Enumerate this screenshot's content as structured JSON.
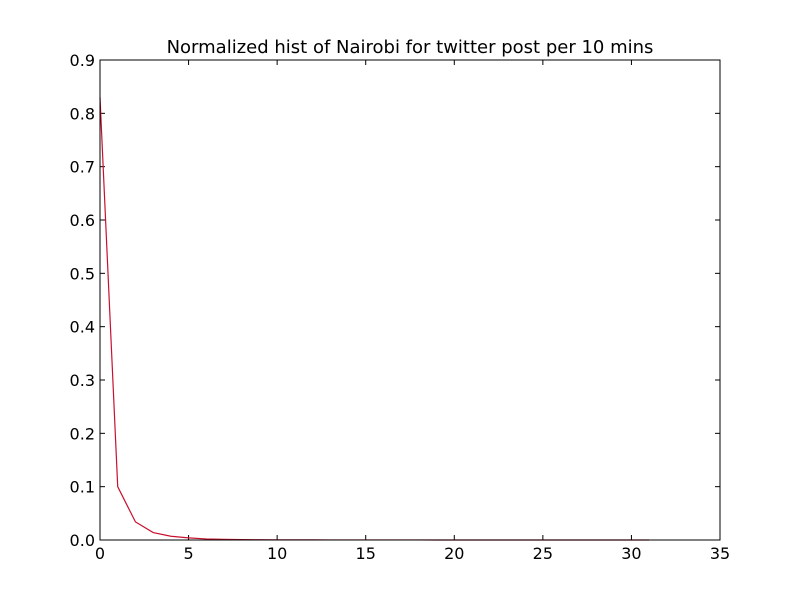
{
  "chart_data": {
    "type": "line",
    "title": "Normalized hist of Nairobi for twitter post per 10 mins",
    "xlabel": "",
    "ylabel": "",
    "xlim": [
      0,
      35
    ],
    "ylim": [
      0,
      0.9
    ],
    "xticks": [
      0,
      5,
      10,
      15,
      20,
      25,
      30,
      35
    ],
    "xtick_labels": [
      "0",
      "5",
      "10",
      "15",
      "20",
      "25",
      "30",
      "35"
    ],
    "yticks": [
      0.0,
      0.1,
      0.2,
      0.3,
      0.4,
      0.5,
      0.6,
      0.7,
      0.8,
      0.9
    ],
    "ytick_labels": [
      "0.0",
      "0.1",
      "0.2",
      "0.3",
      "0.4",
      "0.5",
      "0.6",
      "0.7",
      "0.8",
      "0.9"
    ],
    "grid": false,
    "series": [
      {
        "color": "#c8102e",
        "x": [
          0,
          1,
          2,
          3,
          4,
          5,
          6,
          7,
          8,
          9,
          10,
          11,
          12,
          13,
          14,
          15,
          16,
          17,
          18,
          19,
          20,
          21,
          22,
          23,
          24,
          25,
          26,
          27,
          28,
          29,
          30,
          31
        ],
        "y": [
          0.83,
          0.1,
          0.034,
          0.014,
          0.007,
          0.004,
          0.002,
          0.0012,
          0.0008,
          0.0005,
          0.0003,
          0.0002,
          0.0002,
          0.0001,
          0.0001,
          0.0001,
          0.0001,
          0.0001,
          0.0001,
          0,
          0,
          0,
          0,
          0,
          0,
          0,
          0,
          0,
          0,
          0,
          0,
          0
        ]
      }
    ]
  }
}
